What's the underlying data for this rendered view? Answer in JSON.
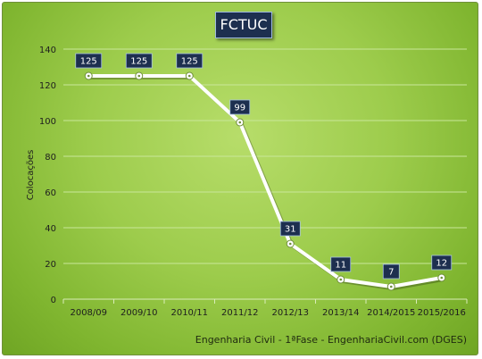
{
  "chart_data": {
    "type": "line",
    "title": "FCTUC",
    "ylabel": "Colocações",
    "xlabel": "",
    "categories": [
      "2008/09",
      "2009/10",
      "2010/11",
      "2011/12",
      "2012/13",
      "2013/14",
      "2014/2015",
      "2015/2016"
    ],
    "series": [
      {
        "values": [
          125,
          125,
          125,
          99,
          31,
          11,
          7,
          12
        ]
      }
    ],
    "data_labels": [
      "125",
      "125",
      "125",
      "99",
      "31",
      "11",
      "7",
      "12"
    ],
    "ylim": [
      0,
      140
    ],
    "yticks": [
      "0",
      "20",
      "40",
      "60",
      "80",
      "100",
      "120",
      "140"
    ],
    "grid": "horizontal",
    "legend": "none",
    "source_note": "Engenharia Civil - 1ªFase - EngenhariaCivil.com (DGES)",
    "colors": {
      "background": "#9dcc4c",
      "line": "#ffffff",
      "label_box": "#1d2f4f",
      "grid": "#c9e79a"
    }
  }
}
